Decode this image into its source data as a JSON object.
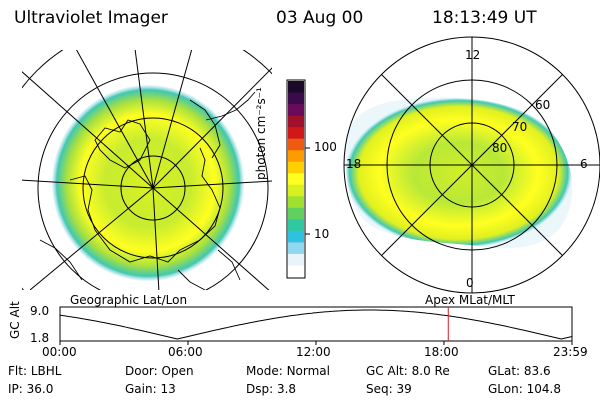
{
  "header": {
    "instrument": "Ultraviolet Imager",
    "date": "03 Aug 00",
    "time": "18:13:49 UT"
  },
  "colorbar": {
    "unit_label": "photon cm⁻²s⁻¹",
    "ticks": [
      "100",
      "10"
    ],
    "colors": [
      "#1a0a28",
      "#3b0a4a",
      "#6a0a5a",
      "#a0102a",
      "#d01818",
      "#f05a10",
      "#ff9a00",
      "#ffd000",
      "#ffff20",
      "#d8f020",
      "#a0e030",
      "#60d060",
      "#30c8a0",
      "#30c0e0",
      "#90d8f0",
      "#e8f4fa",
      "#ffffff"
    ]
  },
  "left_panel": {
    "label": "Geographic Lat/Lon"
  },
  "right_panel": {
    "label": "Apex MLat/MLT",
    "mlt_labels": {
      "top": "12",
      "left": "18",
      "right": "6",
      "bottom": "0"
    },
    "lat_labels": [
      "60",
      "70",
      "80"
    ]
  },
  "altitude_plot": {
    "ylabel": "GC Alt",
    "yticks": [
      "9.0",
      "1.8"
    ],
    "xticks": [
      "00:00",
      "06:00",
      "12:00",
      "18:00",
      "23:59"
    ],
    "current_time_hours": 18.2
  },
  "info": {
    "row1": [
      {
        "label": "Flt:",
        "value": "LBHL"
      },
      {
        "label": "Door:",
        "value": "Open"
      },
      {
        "label": "Mode:",
        "value": "Normal"
      },
      {
        "label": "GC Alt:",
        "value": "8.0 Re"
      },
      {
        "label": "GLat:",
        "value": "83.6"
      }
    ],
    "row2": [
      {
        "label": "IP:",
        "value": "36.0"
      },
      {
        "label": "Gain:",
        "value": "13"
      },
      {
        "label": "Dsp:",
        "value": "3.8"
      },
      {
        "label": "Seq:",
        "value": "39"
      },
      {
        "label": "GLon:",
        "value": "104.8"
      }
    ]
  }
}
